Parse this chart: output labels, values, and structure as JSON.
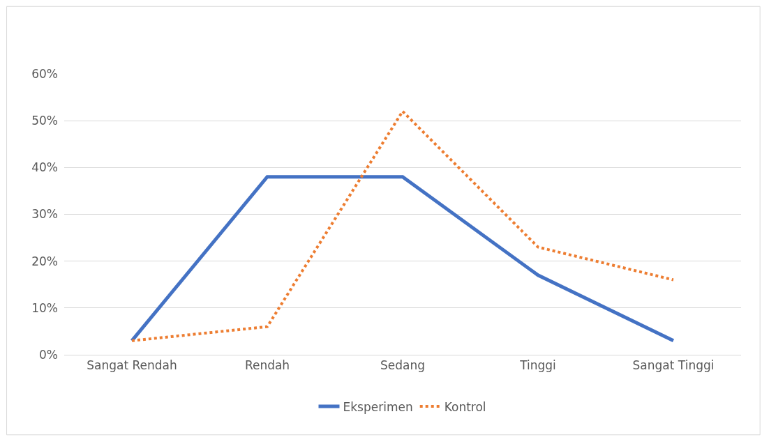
{
  "chart_data": {
    "type": "line",
    "categories": [
      "Sangat Rendah",
      "Rendah",
      "Sedang",
      "Tinggi",
      "Sangat Tinggi"
    ],
    "series": [
      {
        "name": "Eksperimen",
        "color": "#4472c4",
        "line_style": "solid",
        "values": [
          3,
          38,
          38,
          17,
          3
        ]
      },
      {
        "name": "Kontrol",
        "color": "#ed7d31",
        "line_style": "dotted",
        "values": [
          3,
          6,
          52,
          23,
          16
        ]
      }
    ],
    "ylim": [
      0,
      60
    ],
    "yticks": [
      {
        "value": 0,
        "label": "0%"
      },
      {
        "value": 10,
        "label": "10%"
      },
      {
        "value": 20,
        "label": "20%"
      },
      {
        "value": 30,
        "label": "30%"
      },
      {
        "value": 40,
        "label": "40%"
      },
      {
        "value": 50,
        "label": "50%"
      },
      {
        "value": 60,
        "label": "60%"
      }
    ],
    "grid": "y",
    "legend": "bottom",
    "marker": "none"
  }
}
